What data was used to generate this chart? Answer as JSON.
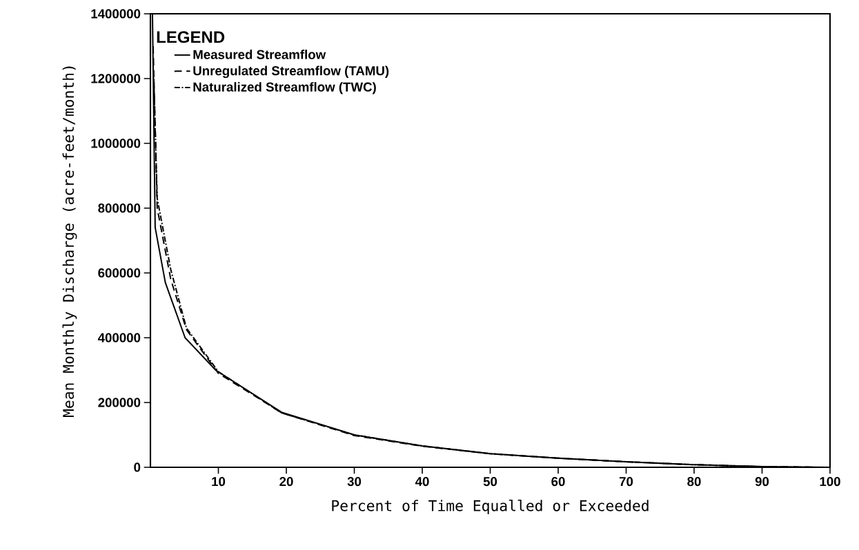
{
  "chart_data": {
    "type": "line",
    "xlabel": "Percent of Time Equalled or Exceeded",
    "ylabel": "Mean Monthly Discharge (acre-feet/month)",
    "legend_title": "LEGEND",
    "legend": "top left",
    "xlim": [
      0,
      100
    ],
    "xticks": [
      10,
      20,
      30,
      40,
      50,
      60,
      70,
      80,
      90,
      100
    ],
    "ylim": [
      0,
      1400000
    ],
    "yticks": [
      0,
      200000,
      400000,
      600000,
      800000,
      1000000,
      1200000,
      1400000
    ],
    "series": [
      {
        "name": "Measured Streamflow",
        "color": "#000000",
        "line_style": "solid",
        "x": [
          0.3,
          0.7,
          2.2,
          5.1,
          9.6,
          19.3,
          30,
          40,
          50,
          60,
          70,
          80,
          90,
          100
        ],
        "values": [
          1400000,
          740000,
          570000,
          400000,
          300000,
          170000,
          100000,
          66000,
          42000,
          28000,
          17000,
          8000,
          2000,
          0
        ]
      },
      {
        "name": "Unregulated Streamflow (TAMU)",
        "color": "#000000",
        "line_style": "dashed",
        "x": [
          0.4,
          1,
          3,
          5.3,
          10,
          15,
          19.3,
          30,
          40,
          50,
          60,
          70,
          80,
          90,
          99
        ],
        "values": [
          1300000,
          800000,
          580000,
          425000,
          290000,
          225000,
          168000,
          98000,
          65000,
          42000,
          28000,
          17000,
          8000,
          2000,
          0
        ]
      },
      {
        "name": "Naturalized Streamflow (TWC)",
        "color": "#000000",
        "line_style": "dashdot",
        "x": [
          0.5,
          1,
          3,
          5.3,
          10,
          19.3,
          30,
          40,
          50,
          60,
          70,
          80,
          90,
          98
        ],
        "values": [
          1200000,
          830000,
          610000,
          430000,
          295000,
          168000,
          100000,
          66000,
          42000,
          28000,
          17000,
          8000,
          2000,
          0
        ]
      }
    ]
  }
}
